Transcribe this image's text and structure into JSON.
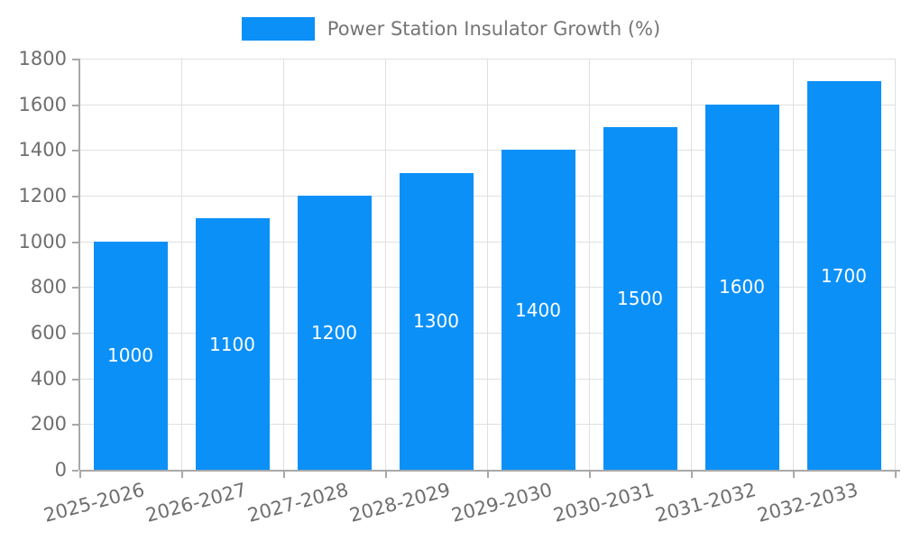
{
  "colors": {
    "bar": "#0b90f8",
    "grid": "#e0e0e0",
    "axis": "#a8a8a8",
    "ticktext": "#6e6e6e",
    "legendtext": "#757575",
    "barlabel": "#ffffff",
    "background": "#ffffff"
  },
  "legend": {
    "label": "Power Station Insulator Growth (%)"
  },
  "chart_data": {
    "type": "bar",
    "title": "Power Station Insulator Growth (%)",
    "categories": [
      "2025-2026",
      "2026-2027",
      "2027-2028",
      "2028-2029",
      "2029-2030",
      "2030-2031",
      "2031-2032",
      "2032-2033"
    ],
    "values": [
      1000,
      1100,
      1200,
      1300,
      1400,
      1500,
      1600,
      1700
    ],
    "xlabel": "",
    "ylabel": "",
    "ylim": [
      0,
      1800
    ],
    "yticks": [
      0,
      200,
      400,
      600,
      800,
      1000,
      1200,
      1400,
      1600,
      1800
    ],
    "grid": true,
    "legend_position": "top-center",
    "bar_value_labels": "inside-center",
    "xtick_rotation_deg": 15
  }
}
